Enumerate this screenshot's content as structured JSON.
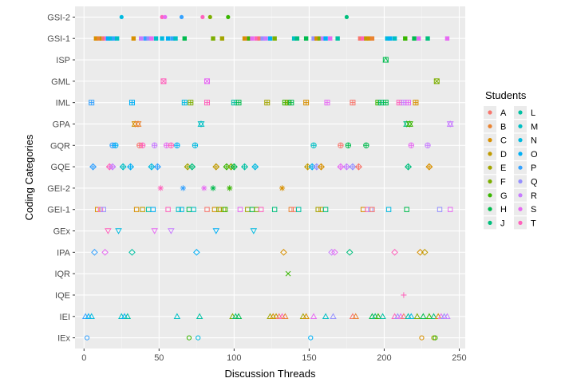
{
  "chart_data": {
    "type": "scatter",
    "title": "",
    "xlabel": "Discussion Threads",
    "ylabel": "Coding Categories",
    "xlim": [
      -6,
      254
    ],
    "x_ticks": [
      0,
      50,
      100,
      150,
      200,
      250
    ],
    "categories": [
      "IEx",
      "IEI",
      "IQE",
      "IQR",
      "IPA",
      "GEx",
      "GEI-1",
      "GEI-2",
      "GQE",
      "GQR",
      "GPA",
      "IML",
      "GML",
      "ISP",
      "GSI-1",
      "GSI-2"
    ],
    "grid": true,
    "legend_position": "right",
    "legend_title": "Students",
    "students": [
      "A",
      "B",
      "C",
      "D",
      "E",
      "F",
      "G",
      "H",
      "J",
      "L",
      "M",
      "N",
      "O",
      "P",
      "Q",
      "R",
      "S",
      "T"
    ],
    "colors": {
      "A": "#F8766D",
      "B": "#EA8331",
      "C": "#D89000",
      "D": "#C09B00",
      "E": "#A3A500",
      "F": "#7CAE00",
      "G": "#39B600",
      "H": "#00BB4E",
      "J": "#00BF7D",
      "L": "#00C1A3",
      "M": "#00BFC4",
      "N": "#00BAE0",
      "O": "#00B0F6",
      "P": "#35A2FF",
      "Q": "#9590FF",
      "R": "#C77CFF",
      "S": "#E76BF3",
      "T": "#FF62BC"
    },
    "category_shapes": {
      "IEx": "circle-open",
      "IEI": "triangle-open",
      "IQE": "plus",
      "IQR": "cross",
      "IPA": "diamond-open",
      "GEx": "triangle-down-open",
      "GEI-1": "square-open",
      "GEI-2": "asterisk",
      "GQE": "diamond-plus",
      "GQR": "circle-plus",
      "GPA": "star-triangles",
      "IML": "square-plus",
      "GML": "square-cross",
      "ISP": "square-triangle",
      "GSI-1": "square-filled",
      "GSI-2": "circle-filled"
    },
    "series": [
      {
        "category": "IEx",
        "points": [
          [
            2,
            "P"
          ],
          [
            70,
            "G"
          ],
          [
            76,
            "N"
          ],
          [
            151,
            "O"
          ],
          [
            225,
            "C"
          ],
          [
            233,
            "E"
          ],
          [
            234,
            "G"
          ]
        ]
      },
      {
        "category": "IEI",
        "points": [
          [
            1,
            "P"
          ],
          [
            3,
            "O"
          ],
          [
            5,
            "N"
          ],
          [
            25,
            "M"
          ],
          [
            27,
            "O"
          ],
          [
            29,
            "L"
          ],
          [
            62,
            "M"
          ],
          [
            77,
            "L"
          ],
          [
            99,
            "F"
          ],
          [
            101,
            "J"
          ],
          [
            103,
            "H"
          ],
          [
            124,
            "E"
          ],
          [
            126,
            "C"
          ],
          [
            128,
            "D"
          ],
          [
            130,
            "A"
          ],
          [
            132,
            "T"
          ],
          [
            134,
            "B"
          ],
          [
            146,
            "E"
          ],
          [
            148,
            "C"
          ],
          [
            153,
            "S"
          ],
          [
            161,
            "M"
          ],
          [
            166,
            "Q"
          ],
          [
            179,
            "A"
          ],
          [
            181,
            "B"
          ],
          [
            192,
            "H"
          ],
          [
            194,
            "J"
          ],
          [
            196,
            "G"
          ],
          [
            199,
            "L"
          ],
          [
            207,
            "T"
          ],
          [
            209,
            "Q"
          ],
          [
            211,
            "S"
          ],
          [
            213,
            "A"
          ],
          [
            216,
            "L"
          ],
          [
            218,
            "N"
          ],
          [
            222,
            "F"
          ],
          [
            226,
            "H"
          ],
          [
            230,
            "G"
          ],
          [
            233,
            "J"
          ],
          [
            236,
            "C"
          ],
          [
            238,
            "S"
          ],
          [
            240,
            "Q"
          ],
          [
            242,
            "R"
          ]
        ]
      },
      {
        "category": "IQE",
        "points": [
          [
            213,
            "T"
          ]
        ]
      },
      {
        "category": "IQR",
        "points": [
          [
            136,
            "G"
          ]
        ]
      },
      {
        "category": "IPA",
        "points": [
          [
            7,
            "P"
          ],
          [
            14,
            "S"
          ],
          [
            32,
            "L"
          ],
          [
            75,
            "O"
          ],
          [
            133,
            "C"
          ],
          [
            165,
            "R"
          ],
          [
            167,
            "S"
          ],
          [
            177,
            "J"
          ],
          [
            207,
            "T"
          ],
          [
            224,
            "C"
          ],
          [
            227,
            "D"
          ]
        ]
      },
      {
        "category": "GEx",
        "points": [
          [
            16,
            "T"
          ],
          [
            23,
            "N"
          ],
          [
            47,
            "S"
          ],
          [
            58,
            "R"
          ],
          [
            88,
            "O"
          ],
          [
            113,
            "N"
          ]
        ]
      },
      {
        "category": "GEI-1",
        "points": [
          [
            9,
            "C"
          ],
          [
            11,
            "T"
          ],
          [
            13,
            "Q"
          ],
          [
            35,
            "C"
          ],
          [
            39,
            "D"
          ],
          [
            43,
            "L"
          ],
          [
            46,
            "O"
          ],
          [
            56,
            "T"
          ],
          [
            63,
            "M"
          ],
          [
            65,
            "N"
          ],
          [
            70,
            "H"
          ],
          [
            73,
            "M"
          ],
          [
            82,
            "A"
          ],
          [
            87,
            "C"
          ],
          [
            90,
            "F"
          ],
          [
            91,
            "D"
          ],
          [
            93,
            "E"
          ],
          [
            94,
            "G"
          ],
          [
            104,
            "S"
          ],
          [
            109,
            "E"
          ],
          [
            112,
            "H"
          ],
          [
            115,
            "F"
          ],
          [
            118,
            "T"
          ],
          [
            127,
            "J"
          ],
          [
            138,
            "B"
          ],
          [
            140,
            "A"
          ],
          [
            143,
            "L"
          ],
          [
            156,
            "E"
          ],
          [
            158,
            "D"
          ],
          [
            161,
            "J"
          ],
          [
            186,
            "C"
          ],
          [
            189,
            "T"
          ],
          [
            191,
            "Q"
          ],
          [
            192,
            "A"
          ],
          [
            203,
            "N"
          ],
          [
            215,
            "H"
          ],
          [
            237,
            "Q"
          ],
          [
            244,
            "S"
          ]
        ]
      },
      {
        "category": "GEI-2",
        "points": [
          [
            51,
            "T"
          ],
          [
            66,
            "P"
          ],
          [
            80,
            "S"
          ],
          [
            86,
            "H"
          ],
          [
            97,
            "G"
          ],
          [
            132,
            "C"
          ]
        ]
      },
      {
        "category": "GQE",
        "points": [
          [
            6,
            "P"
          ],
          [
            17,
            "T"
          ],
          [
            19,
            "R"
          ],
          [
            26,
            "M"
          ],
          [
            31,
            "O"
          ],
          [
            45,
            "N"
          ],
          [
            49,
            "P"
          ],
          [
            69,
            "E"
          ],
          [
            72,
            "J"
          ],
          [
            88,
            "D"
          ],
          [
            95,
            "G"
          ],
          [
            98,
            "F"
          ],
          [
            100,
            "H"
          ],
          [
            107,
            "L"
          ],
          [
            114,
            "N"
          ],
          [
            149,
            "D"
          ],
          [
            152,
            "O"
          ],
          [
            155,
            "Q"
          ],
          [
            158,
            "C"
          ],
          [
            171,
            "S"
          ],
          [
            175,
            "R"
          ],
          [
            179,
            "Q"
          ],
          [
            183,
            "A"
          ],
          [
            216,
            "J"
          ],
          [
            230,
            "C"
          ]
        ]
      },
      {
        "category": "GQR",
        "points": [
          [
            19,
            "P"
          ],
          [
            21,
            "O"
          ],
          [
            37,
            "A"
          ],
          [
            39,
            "T"
          ],
          [
            47,
            "R"
          ],
          [
            55,
            "S"
          ],
          [
            58,
            "T"
          ],
          [
            62,
            "O"
          ],
          [
            74,
            "N"
          ],
          [
            153,
            "M"
          ],
          [
            171,
            "A"
          ],
          [
            176,
            "H"
          ],
          [
            188,
            "H"
          ],
          [
            218,
            "S"
          ],
          [
            229,
            "R"
          ]
        ]
      },
      {
        "category": "GPA",
        "points": [
          [
            34,
            "C"
          ],
          [
            36,
            "B"
          ],
          [
            78,
            "M"
          ],
          [
            215,
            "J"
          ],
          [
            217,
            "G"
          ],
          [
            244,
            "R"
          ]
        ]
      },
      {
        "category": "IML",
        "points": [
          [
            5,
            "P"
          ],
          [
            32,
            "O"
          ],
          [
            67,
            "N"
          ],
          [
            71,
            "F"
          ],
          [
            82,
            "T"
          ],
          [
            100,
            "L"
          ],
          [
            103,
            "H"
          ],
          [
            122,
            "E"
          ],
          [
            134,
            "G"
          ],
          [
            136,
            "F"
          ],
          [
            138,
            "H"
          ],
          [
            148,
            "C"
          ],
          [
            162,
            "S"
          ],
          [
            179,
            "A"
          ],
          [
            196,
            "G"
          ],
          [
            198,
            "J"
          ],
          [
            201,
            "H"
          ],
          [
            210,
            "T"
          ],
          [
            213,
            "R"
          ],
          [
            216,
            "S"
          ],
          [
            221,
            "C"
          ]
        ]
      },
      {
        "category": "GML",
        "points": [
          [
            53,
            "T"
          ],
          [
            82,
            "S"
          ],
          [
            235,
            "F"
          ]
        ]
      },
      {
        "category": "ISP",
        "points": [
          [
            201,
            "H"
          ]
        ]
      },
      {
        "category": "GSI-1",
        "points": [
          [
            8,
            "C"
          ],
          [
            10,
            "B"
          ],
          [
            12,
            "D"
          ],
          [
            13,
            "A"
          ],
          [
            15,
            "S"
          ],
          [
            16,
            "O"
          ],
          [
            18,
            "N"
          ],
          [
            20,
            "P"
          ],
          [
            22,
            "M"
          ],
          [
            33,
            "C"
          ],
          [
            38,
            "R"
          ],
          [
            41,
            "P"
          ],
          [
            43,
            "Q"
          ],
          [
            45,
            "S"
          ],
          [
            48,
            "M"
          ],
          [
            52,
            "N"
          ],
          [
            56,
            "O"
          ],
          [
            59,
            "P"
          ],
          [
            61,
            "M"
          ],
          [
            67,
            "H"
          ],
          [
            86,
            "F"
          ],
          [
            92,
            "E"
          ],
          [
            107,
            "C"
          ],
          [
            109,
            "B"
          ],
          [
            110,
            "G"
          ],
          [
            112,
            "S"
          ],
          [
            115,
            "T"
          ],
          [
            117,
            "A"
          ],
          [
            119,
            "Q"
          ],
          [
            121,
            "R"
          ],
          [
            124,
            "O"
          ],
          [
            127,
            "F"
          ],
          [
            140,
            "M"
          ],
          [
            142,
            "J"
          ],
          [
            148,
            "H"
          ],
          [
            153,
            "Q"
          ],
          [
            155,
            "C"
          ],
          [
            157,
            "F"
          ],
          [
            159,
            "R"
          ],
          [
            161,
            "O"
          ],
          [
            164,
            "S"
          ],
          [
            169,
            "L"
          ],
          [
            184,
            "A"
          ],
          [
            186,
            "T"
          ],
          [
            188,
            "D"
          ],
          [
            190,
            "C"
          ],
          [
            192,
            "B"
          ],
          [
            202,
            "N"
          ],
          [
            204,
            "O"
          ],
          [
            207,
            "M"
          ],
          [
            214,
            "G"
          ],
          [
            220,
            "H"
          ],
          [
            223,
            "S"
          ],
          [
            229,
            "J"
          ],
          [
            242,
            "S"
          ]
        ]
      },
      {
        "category": "GSI-2",
        "points": [
          [
            25,
            "N"
          ],
          [
            52,
            "T"
          ],
          [
            54,
            "S"
          ],
          [
            65,
            "P"
          ],
          [
            79,
            "T"
          ],
          [
            84,
            "F"
          ],
          [
            96,
            "G"
          ],
          [
            175,
            "J"
          ]
        ]
      }
    ]
  }
}
